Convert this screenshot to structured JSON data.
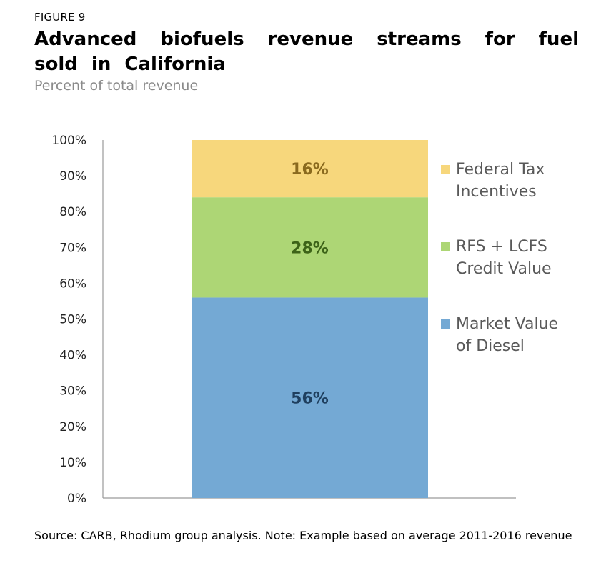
{
  "figure_label": "FIGURE 9",
  "title": "Advanced biofuels revenue streams for fuel sold in California",
  "subtitle": "Percent of total revenue",
  "source": "Source: CARB, Rhodium group analysis. Note: Example based on average 2011-2016 revenue",
  "chart_data": {
    "type": "bar",
    "stacked": true,
    "title": "Advanced biofuels revenue streams for fuel sold in California",
    "subtitle": "Percent of total revenue",
    "ylim": [
      0,
      100
    ],
    "y_ticks": [
      "0%",
      "10%",
      "20%",
      "30%",
      "40%",
      "50%",
      "60%",
      "70%",
      "80%",
      "90%",
      "100%"
    ],
    "grid": false,
    "legend_position": "right",
    "series": [
      {
        "name": "Market Value of Diesel",
        "value": 56,
        "label": "56%",
        "color": "#74a9d4",
        "label_color": "#1f3f5e",
        "legend_lines": [
          "Market Value",
          "of Diesel"
        ]
      },
      {
        "name": "RFS + LCFS Credit Value",
        "value": 28,
        "label": "28%",
        "color": "#add675",
        "label_color": "#3d6318",
        "legend_lines": [
          "RFS + LCFS",
          "Credit Value"
        ]
      },
      {
        "name": "Federal Tax Incentives",
        "value": 16,
        "label": "16%",
        "color": "#f7d77c",
        "label_color": "#8a6a1e",
        "legend_lines": [
          "Federal Tax",
          "Incentives"
        ]
      }
    ]
  }
}
